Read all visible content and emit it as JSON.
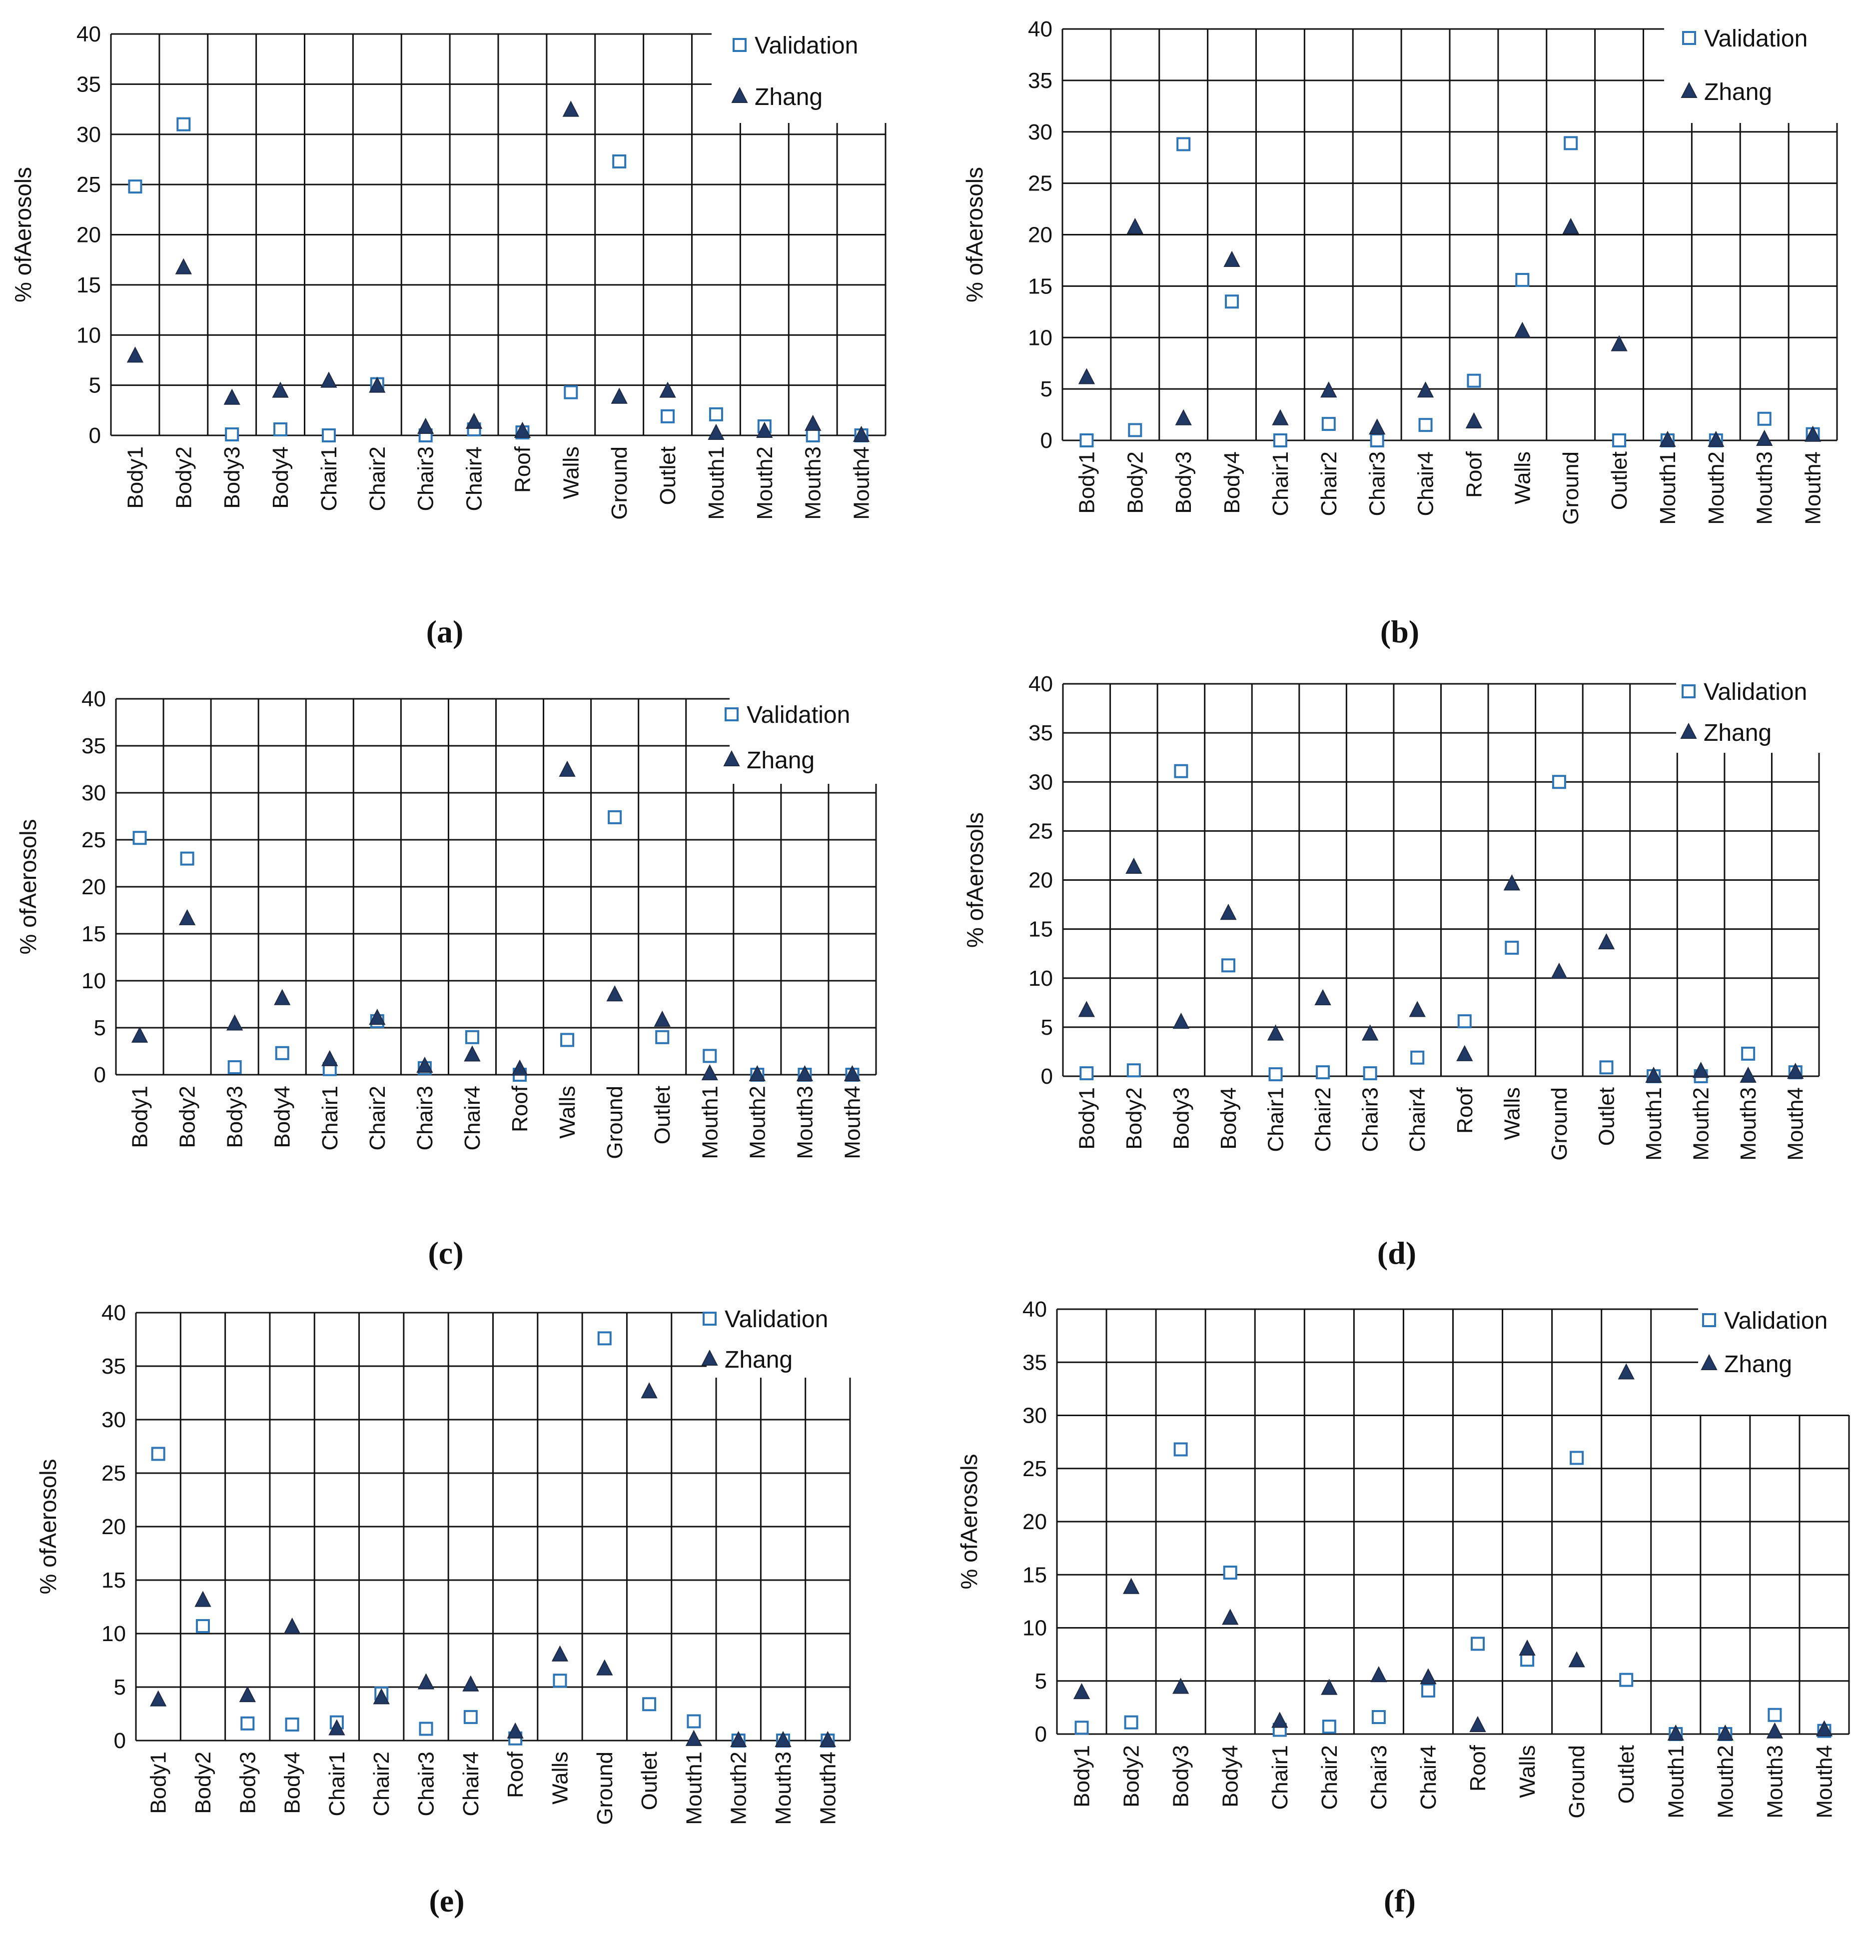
{
  "chart_data": [
    {
      "panel": "a",
      "type": "scatter",
      "caption": "(a)",
      "ylabel": "% ofAerosols",
      "ylim": [
        0,
        40
      ],
      "yticks": [
        0,
        5,
        10,
        15,
        20,
        25,
        30,
        35,
        40
      ],
      "grid": true,
      "legend_position": "top-right",
      "categories": [
        "Body1",
        "Body2",
        "Body3",
        "Body4",
        "Chair1",
        "Chair2",
        "Chair3",
        "Chair4",
        "Roof",
        "Walls",
        "Ground",
        "Outlet",
        "Mouth1",
        "Mouth2",
        "Mouth3",
        "Mouth4"
      ],
      "series": [
        {
          "name": "Validation",
          "marker": "open-square",
          "color": "#2E75B6",
          "values": [
            24.8,
            31.0,
            0.1,
            0.6,
            0.0,
            5.1,
            0.0,
            0.6,
            0.3,
            4.3,
            27.3,
            1.9,
            2.1,
            0.9,
            0.0,
            0.0
          ]
        },
        {
          "name": "Zhang",
          "marker": "filled-triangle",
          "color": "#1F3864",
          "values": [
            7.9,
            16.7,
            3.7,
            4.4,
            5.4,
            4.9,
            0.8,
            1.3,
            0.4,
            32.4,
            3.8,
            4.4,
            0.2,
            0.4,
            1.1,
            0.0
          ]
        }
      ]
    },
    {
      "panel": "b",
      "type": "scatter",
      "caption": "(b)",
      "ylabel": "% ofAerosols",
      "ylim": [
        0,
        40
      ],
      "yticks": [
        0,
        5,
        10,
        15,
        20,
        25,
        30,
        35,
        40
      ],
      "grid": true,
      "legend_position": "top-right",
      "categories": [
        "Body1",
        "Body2",
        "Body3",
        "Body4",
        "Chair1",
        "Chair2",
        "Chair3",
        "Chair4",
        "Roof",
        "Walls",
        "Ground",
        "Outlet",
        "Mouth1",
        "Mouth2",
        "Mouth3",
        "Mouth4"
      ],
      "series": [
        {
          "name": "Validation",
          "marker": "open-square",
          "color": "#2E75B6",
          "values": [
            0.0,
            1.0,
            28.8,
            13.5,
            0.0,
            1.6,
            0.0,
            1.5,
            5.8,
            15.6,
            28.9,
            0.0,
            0.0,
            0.0,
            2.1,
            0.6
          ]
        },
        {
          "name": "Zhang",
          "marker": "filled-triangle",
          "color": "#1F3864",
          "values": [
            6.1,
            20.7,
            2.1,
            17.5,
            2.1,
            4.8,
            1.2,
            4.8,
            1.8,
            10.6,
            20.7,
            9.3,
            0.0,
            0.0,
            0.1,
            0.5
          ]
        }
      ]
    },
    {
      "panel": "c",
      "type": "scatter",
      "caption": "(c)",
      "ylabel": "% ofAerosols",
      "ylim": [
        0,
        40
      ],
      "yticks": [
        0,
        5,
        10,
        15,
        20,
        25,
        30,
        35,
        40
      ],
      "grid": true,
      "legend_position": "top-right",
      "categories": [
        "Body1",
        "Body2",
        "Body3",
        "Body4",
        "Chair1",
        "Chair2",
        "Chair3",
        "Chair4",
        "Roof",
        "Walls",
        "Ground",
        "Outlet",
        "Mouth1",
        "Mouth2",
        "Mouth3",
        "Mouth4"
      ],
      "series": [
        {
          "name": "Validation",
          "marker": "open-square",
          "color": "#2E75B6",
          "values": [
            25.2,
            23.0,
            0.8,
            2.3,
            0.6,
            5.7,
            0.7,
            4.0,
            0.0,
            3.7,
            27.4,
            4.0,
            2.0,
            0.0,
            0.0,
            0.0
          ]
        },
        {
          "name": "Zhang",
          "marker": "filled-triangle",
          "color": "#1F3864",
          "values": [
            4.1,
            16.6,
            5.4,
            8.1,
            1.6,
            6.0,
            0.9,
            2.1,
            0.6,
            32.4,
            8.5,
            5.8,
            0.1,
            0.0,
            0.0,
            0.0
          ]
        }
      ]
    },
    {
      "panel": "d",
      "type": "scatter",
      "caption": "(d)",
      "ylabel": "% ofAerosols",
      "ylim": [
        0,
        40
      ],
      "yticks": [
        0,
        5,
        10,
        15,
        20,
        25,
        30,
        35,
        40
      ],
      "grid": true,
      "legend_position": "top-right",
      "categories": [
        "Body1",
        "Body2",
        "Body3",
        "Body4",
        "Chair1",
        "Chair2",
        "Chair3",
        "Chair4",
        "Roof",
        "Walls",
        "Ground",
        "Outlet",
        "Mouth1",
        "Mouth2",
        "Mouth3",
        "Mouth4"
      ],
      "series": [
        {
          "name": "Validation",
          "marker": "open-square",
          "color": "#2E75B6",
          "values": [
            0.3,
            0.6,
            31.1,
            11.3,
            0.2,
            0.4,
            0.3,
            1.9,
            5.6,
            13.1,
            30.0,
            0.9,
            0.0,
            0.0,
            2.3,
            0.4
          ]
        },
        {
          "name": "Zhang",
          "marker": "filled-triangle",
          "color": "#1F3864",
          "values": [
            6.7,
            21.3,
            5.5,
            16.6,
            4.3,
            7.9,
            4.3,
            6.7,
            2.2,
            19.6,
            10.6,
            13.6,
            0.0,
            0.5,
            0.0,
            0.4
          ]
        }
      ]
    },
    {
      "panel": "e",
      "type": "scatter",
      "caption": "(e)",
      "ylabel": "% ofAerosols",
      "ylim": [
        0,
        40
      ],
      "yticks": [
        0,
        5,
        10,
        15,
        20,
        25,
        30,
        35,
        40
      ],
      "grid": true,
      "legend_position": "top-right",
      "categories": [
        "Body1",
        "Body2",
        "Body3",
        "Body4",
        "Chair1",
        "Chair2",
        "Chair3",
        "Chair4",
        "Roof",
        "Walls",
        "Ground",
        "Outlet",
        "Mouth1",
        "Mouth2",
        "Mouth3",
        "Mouth4"
      ],
      "series": [
        {
          "name": "Validation",
          "marker": "open-square",
          "color": "#2E75B6",
          "values": [
            26.8,
            10.7,
            1.6,
            1.5,
            1.7,
            4.4,
            1.1,
            2.2,
            0.2,
            5.6,
            37.6,
            3.4,
            1.8,
            0.0,
            0.0,
            0.0
          ]
        },
        {
          "name": "Zhang",
          "marker": "filled-triangle",
          "color": "#1F3864",
          "values": [
            3.8,
            13.1,
            4.2,
            10.6,
            1.1,
            4.0,
            5.4,
            5.2,
            0.8,
            8.0,
            6.7,
            32.6,
            0.1,
            0.0,
            0.0,
            0.0
          ]
        }
      ]
    },
    {
      "panel": "f",
      "type": "scatter",
      "caption": "(f)",
      "ylabel": "% ofAerosols",
      "ylim": [
        0,
        40
      ],
      "yticks": [
        0,
        5,
        10,
        15,
        20,
        25,
        30,
        35,
        40
      ],
      "grid": true,
      "legend_position": "top-right",
      "categories": [
        "Body1",
        "Body2",
        "Body3",
        "Body4",
        "Chair1",
        "Chair2",
        "Chair3",
        "Chair4",
        "Roof",
        "Walls",
        "Ground",
        "Outlet",
        "Mouth1",
        "Mouth2",
        "Mouth3",
        "Mouth4"
      ],
      "series": [
        {
          "name": "Validation",
          "marker": "open-square",
          "color": "#2E75B6",
          "values": [
            0.6,
            1.1,
            26.8,
            15.2,
            0.4,
            0.7,
            1.6,
            4.1,
            8.5,
            7.0,
            26.0,
            5.1,
            0.0,
            0.0,
            1.8,
            0.3
          ]
        },
        {
          "name": "Zhang",
          "marker": "filled-triangle",
          "color": "#1F3864",
          "values": [
            3.9,
            13.8,
            4.4,
            10.9,
            1.2,
            4.3,
            5.5,
            5.3,
            0.8,
            8.0,
            6.9,
            34.0,
            0.0,
            0.0,
            0.2,
            0.4
          ]
        }
      ]
    }
  ]
}
